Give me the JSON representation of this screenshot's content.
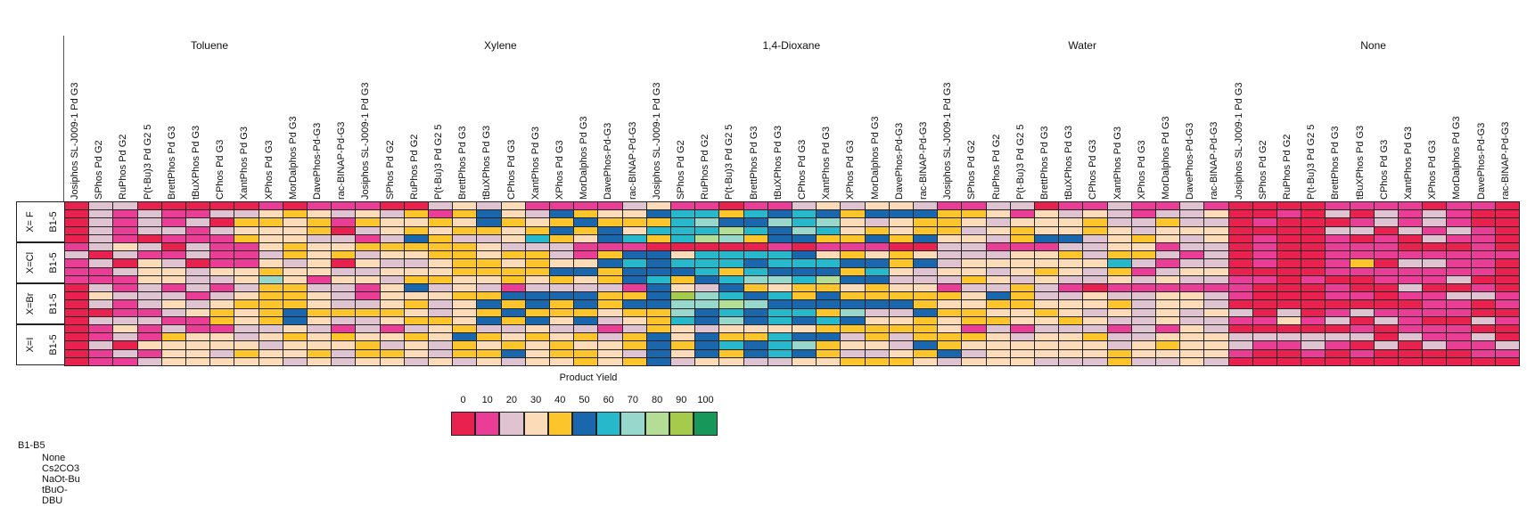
{
  "chart_data": {
    "type": "heatmap",
    "solvents": [
      "Toluene",
      "Xylene",
      "1,4-Dioxane",
      "Water",
      "None"
    ],
    "ligands": [
      "Josiphos SL-J009-1 Pd G3",
      "SPhos Pd G2",
      "RuPhos Pd G2",
      "P(t-Bu)3 Pd G2 5",
      "BrettPhos Pd G3",
      "tBuXPhos Pd G3",
      "CPhos Pd G3",
      "XantPhos Pd G3",
      "XPhos Pd G3",
      "MorDalphos Pd G3",
      "DavePhos-Pd-G3",
      "rac-BINAP-Pd-G3"
    ],
    "row_groups": [
      "X= F",
      "X=Cl",
      "X=Br",
      "X=I"
    ],
    "row_sublabel": "B1-5",
    "rows_per_group": 5,
    "colorbar": {
      "title": "Product Yield",
      "ticks": [
        0,
        10,
        20,
        30,
        40,
        50,
        60,
        70,
        80,
        90,
        100
      ],
      "colors": [
        "#e8214f",
        "#ea3d96",
        "#dfc3d0",
        "#fcdcb8",
        "#fcc52c",
        "#1a67ad",
        "#27b8cb",
        "#98d8cc",
        "#b4dd96",
        "#a6cb4c",
        "#17985a"
      ]
    },
    "base_legend": {
      "title": "B1-B5",
      "items": [
        "None",
        "Cs2CO3",
        "NaOt-Bu",
        "tBuO-",
        "DBU"
      ]
    },
    "values": [
      [
        0,
        20,
        20,
        0,
        0,
        0,
        0,
        0,
        10,
        0,
        10,
        10,
        10,
        0,
        0,
        20,
        30,
        20,
        30,
        10,
        10,
        10,
        10,
        20,
        30,
        10,
        10,
        0,
        10,
        10,
        20,
        30,
        20,
        30,
        30,
        20,
        10,
        10,
        20,
        20,
        0,
        10,
        10,
        20,
        10,
        10,
        20,
        10,
        0,
        0,
        0,
        0,
        10,
        10,
        10,
        10,
        0,
        10,
        10,
        0
      ],
      [
        0,
        20,
        10,
        20,
        10,
        10,
        20,
        20,
        30,
        40,
        30,
        20,
        30,
        20,
        40,
        10,
        40,
        50,
        30,
        20,
        50,
        40,
        30,
        30,
        50,
        60,
        60,
        40,
        60,
        50,
        60,
        50,
        40,
        50,
        50,
        50,
        40,
        40,
        30,
        10,
        30,
        20,
        30,
        20,
        10,
        20,
        20,
        30,
        0,
        0,
        10,
        0,
        20,
        0,
        20,
        10,
        20,
        10,
        0,
        0
      ],
      [
        0,
        20,
        10,
        20,
        10,
        20,
        0,
        40,
        40,
        30,
        40,
        10,
        40,
        30,
        30,
        40,
        30,
        50,
        40,
        30,
        40,
        50,
        40,
        40,
        40,
        60,
        70,
        50,
        50,
        70,
        60,
        70,
        30,
        20,
        30,
        40,
        40,
        30,
        20,
        30,
        30,
        30,
        40,
        20,
        20,
        40,
        20,
        20,
        0,
        10,
        0,
        0,
        0,
        10,
        20,
        10,
        20,
        10,
        0,
        0
      ],
      [
        0,
        20,
        10,
        20,
        20,
        10,
        20,
        30,
        30,
        30,
        40,
        0,
        20,
        30,
        40,
        30,
        40,
        40,
        30,
        40,
        50,
        40,
        50,
        30,
        60,
        60,
        60,
        80,
        60,
        50,
        70,
        60,
        30,
        40,
        30,
        40,
        40,
        20,
        30,
        40,
        30,
        30,
        40,
        30,
        20,
        30,
        30,
        30,
        0,
        0,
        0,
        0,
        20,
        20,
        0,
        20,
        10,
        20,
        10,
        0
      ],
      [
        0,
        20,
        10,
        0,
        10,
        10,
        10,
        40,
        30,
        30,
        20,
        20,
        10,
        20,
        50,
        40,
        20,
        20,
        30,
        60,
        40,
        30,
        50,
        60,
        40,
        60,
        80,
        70,
        40,
        50,
        50,
        40,
        40,
        50,
        40,
        50,
        30,
        30,
        20,
        40,
        50,
        50,
        20,
        30,
        40,
        30,
        20,
        30,
        0,
        10,
        0,
        0,
        10,
        0,
        10,
        0,
        20,
        10,
        10,
        0
      ],
      [
        10,
        20,
        30,
        20,
        0,
        20,
        10,
        10,
        30,
        40,
        30,
        30,
        40,
        40,
        40,
        40,
        40,
        30,
        20,
        20,
        20,
        10,
        10,
        10,
        0,
        0,
        0,
        0,
        0,
        10,
        0,
        10,
        10,
        10,
        0,
        0,
        20,
        20,
        10,
        10,
        10,
        20,
        20,
        30,
        30,
        10,
        20,
        20,
        0,
        10,
        0,
        0,
        10,
        10,
        10,
        0,
        0,
        0,
        10,
        0
      ],
      [
        20,
        0,
        20,
        10,
        10,
        20,
        10,
        10,
        20,
        40,
        30,
        40,
        20,
        30,
        30,
        40,
        40,
        30,
        40,
        40,
        20,
        10,
        40,
        50,
        50,
        30,
        60,
        60,
        60,
        60,
        50,
        30,
        40,
        30,
        40,
        30,
        20,
        20,
        20,
        30,
        30,
        40,
        20,
        40,
        40,
        20,
        10,
        20,
        0,
        10,
        0,
        0,
        10,
        10,
        10,
        10,
        10,
        10,
        10,
        10
      ],
      [
        10,
        20,
        0,
        30,
        20,
        0,
        10,
        10,
        30,
        20,
        30,
        0,
        30,
        20,
        20,
        30,
        40,
        40,
        30,
        40,
        30,
        30,
        50,
        60,
        50,
        60,
        60,
        60,
        50,
        60,
        60,
        60,
        50,
        50,
        40,
        50,
        20,
        30,
        30,
        30,
        30,
        30,
        30,
        60,
        20,
        10,
        20,
        20,
        0,
        10,
        0,
        0,
        10,
        40,
        0,
        20,
        20,
        10,
        10,
        0
      ],
      [
        10,
        10,
        20,
        30,
        30,
        20,
        30,
        30,
        40,
        30,
        30,
        20,
        20,
        30,
        30,
        30,
        40,
        40,
        40,
        40,
        50,
        50,
        40,
        50,
        50,
        50,
        60,
        40,
        60,
        50,
        50,
        50,
        40,
        60,
        30,
        20,
        30,
        30,
        20,
        30,
        40,
        30,
        20,
        40,
        10,
        20,
        30,
        30,
        0,
        0,
        0,
        0,
        10,
        10,
        10,
        10,
        10,
        10,
        10,
        0
      ],
      [
        10,
        10,
        10,
        30,
        30,
        20,
        20,
        30,
        70,
        30,
        10,
        30,
        30,
        20,
        40,
        40,
        30,
        30,
        40,
        30,
        40,
        30,
        40,
        50,
        60,
        40,
        50,
        60,
        70,
        70,
        60,
        80,
        50,
        50,
        20,
        20,
        20,
        40,
        30,
        20,
        30,
        20,
        20,
        30,
        20,
        30,
        20,
        20,
        10,
        10,
        0,
        10,
        0,
        0,
        10,
        10,
        10,
        20,
        0,
        0
      ],
      [
        0,
        20,
        10,
        20,
        10,
        20,
        10,
        20,
        40,
        40,
        20,
        20,
        10,
        30,
        50,
        20,
        30,
        20,
        10,
        20,
        20,
        20,
        20,
        10,
        50,
        30,
        20,
        50,
        40,
        30,
        40,
        40,
        30,
        40,
        30,
        30,
        10,
        20,
        20,
        40,
        20,
        10,
        0,
        10,
        10,
        10,
        10,
        10,
        10,
        0,
        0,
        0,
        10,
        0,
        0,
        20,
        0,
        0,
        10,
        0
      ],
      [
        0,
        30,
        20,
        20,
        20,
        10,
        20,
        30,
        40,
        40,
        30,
        20,
        10,
        30,
        30,
        30,
        40,
        40,
        50,
        50,
        50,
        50,
        40,
        40,
        50,
        90,
        70,
        60,
        50,
        60,
        40,
        50,
        40,
        40,
        40,
        40,
        40,
        30,
        50,
        40,
        20,
        20,
        30,
        20,
        20,
        30,
        30,
        20,
        10,
        0,
        0,
        0,
        10,
        10,
        0,
        10,
        10,
        20,
        20,
        10
      ],
      [
        0,
        20,
        10,
        20,
        30,
        20,
        30,
        40,
        40,
        40,
        30,
        20,
        20,
        30,
        40,
        20,
        30,
        50,
        40,
        50,
        40,
        50,
        40,
        50,
        50,
        70,
        70,
        80,
        70,
        50,
        50,
        50,
        50,
        50,
        50,
        40,
        30,
        30,
        40,
        40,
        30,
        30,
        30,
        40,
        20,
        30,
        30,
        20,
        0,
        0,
        0,
        0,
        0,
        0,
        0,
        0,
        10,
        10,
        0,
        10
      ],
      [
        0,
        0,
        10,
        10,
        20,
        30,
        40,
        30,
        40,
        50,
        40,
        40,
        40,
        40,
        30,
        20,
        30,
        40,
        50,
        40,
        40,
        40,
        30,
        40,
        40,
        70,
        50,
        60,
        50,
        60,
        60,
        40,
        70,
        20,
        20,
        50,
        40,
        40,
        30,
        30,
        40,
        30,
        20,
        30,
        20,
        30,
        20,
        30,
        20,
        0,
        20,
        0,
        10,
        20,
        10,
        10,
        10,
        10,
        0,
        0
      ],
      [
        0,
        20,
        20,
        20,
        10,
        10,
        40,
        30,
        40,
        50,
        30,
        20,
        20,
        30,
        40,
        40,
        30,
        50,
        40,
        50,
        30,
        50,
        20,
        30,
        40,
        60,
        50,
        70,
        50,
        60,
        50,
        60,
        50,
        30,
        30,
        40,
        30,
        40,
        40,
        30,
        30,
        40,
        30,
        20,
        20,
        30,
        20,
        20,
        10,
        10,
        30,
        10,
        20,
        0,
        20,
        10,
        0,
        0,
        20,
        10
      ],
      [
        0,
        10,
        30,
        10,
        20,
        10,
        10,
        20,
        20,
        30,
        20,
        10,
        20,
        10,
        20,
        30,
        40,
        20,
        20,
        30,
        20,
        20,
        10,
        20,
        40,
        30,
        20,
        30,
        30,
        30,
        30,
        40,
        40,
        40,
        40,
        40,
        30,
        10,
        20,
        10,
        20,
        20,
        20,
        10,
        20,
        10,
        30,
        20,
        0,
        0,
        0,
        0,
        0,
        10,
        0,
        10,
        10,
        10,
        0,
        0
      ],
      [
        0,
        10,
        20,
        10,
        40,
        30,
        30,
        20,
        30,
        40,
        30,
        40,
        30,
        30,
        40,
        30,
        50,
        40,
        30,
        40,
        30,
        40,
        20,
        40,
        50,
        30,
        50,
        40,
        40,
        60,
        50,
        50,
        20,
        40,
        20,
        40,
        40,
        40,
        30,
        20,
        30,
        30,
        40,
        20,
        20,
        30,
        30,
        30,
        20,
        20,
        20,
        20,
        20,
        20,
        0,
        20,
        10,
        10,
        20,
        0
      ],
      [
        0,
        20,
        0,
        30,
        30,
        30,
        30,
        30,
        20,
        30,
        30,
        30,
        40,
        20,
        30,
        20,
        40,
        30,
        40,
        30,
        40,
        30,
        30,
        40,
        50,
        40,
        50,
        60,
        50,
        60,
        70,
        40,
        30,
        30,
        20,
        50,
        40,
        30,
        30,
        30,
        30,
        30,
        30,
        20,
        30,
        40,
        30,
        30,
        20,
        10,
        10,
        20,
        10,
        0,
        20,
        0,
        20,
        10,
        10,
        20
      ],
      [
        0,
        10,
        20,
        10,
        30,
        30,
        20,
        40,
        30,
        30,
        40,
        20,
        40,
        40,
        30,
        20,
        40,
        40,
        50,
        30,
        40,
        40,
        30,
        20,
        50,
        30,
        50,
        40,
        50,
        60,
        50,
        40,
        20,
        20,
        30,
        40,
        50,
        20,
        30,
        30,
        30,
        30,
        30,
        40,
        30,
        30,
        30,
        30,
        10,
        0,
        0,
        10,
        0,
        10,
        0,
        0,
        0,
        0,
        10,
        10
      ],
      [
        0,
        10,
        10,
        20,
        30,
        30,
        30,
        30,
        30,
        20,
        30,
        20,
        30,
        30,
        20,
        30,
        20,
        30,
        20,
        30,
        30,
        40,
        30,
        40,
        50,
        20,
        30,
        30,
        20,
        20,
        30,
        30,
        40,
        40,
        40,
        30,
        20,
        30,
        30,
        30,
        20,
        20,
        20,
        40,
        20,
        20,
        30,
        20,
        0,
        0,
        0,
        0,
        0,
        0,
        0,
        0,
        0,
        0,
        0,
        0
      ]
    ]
  }
}
